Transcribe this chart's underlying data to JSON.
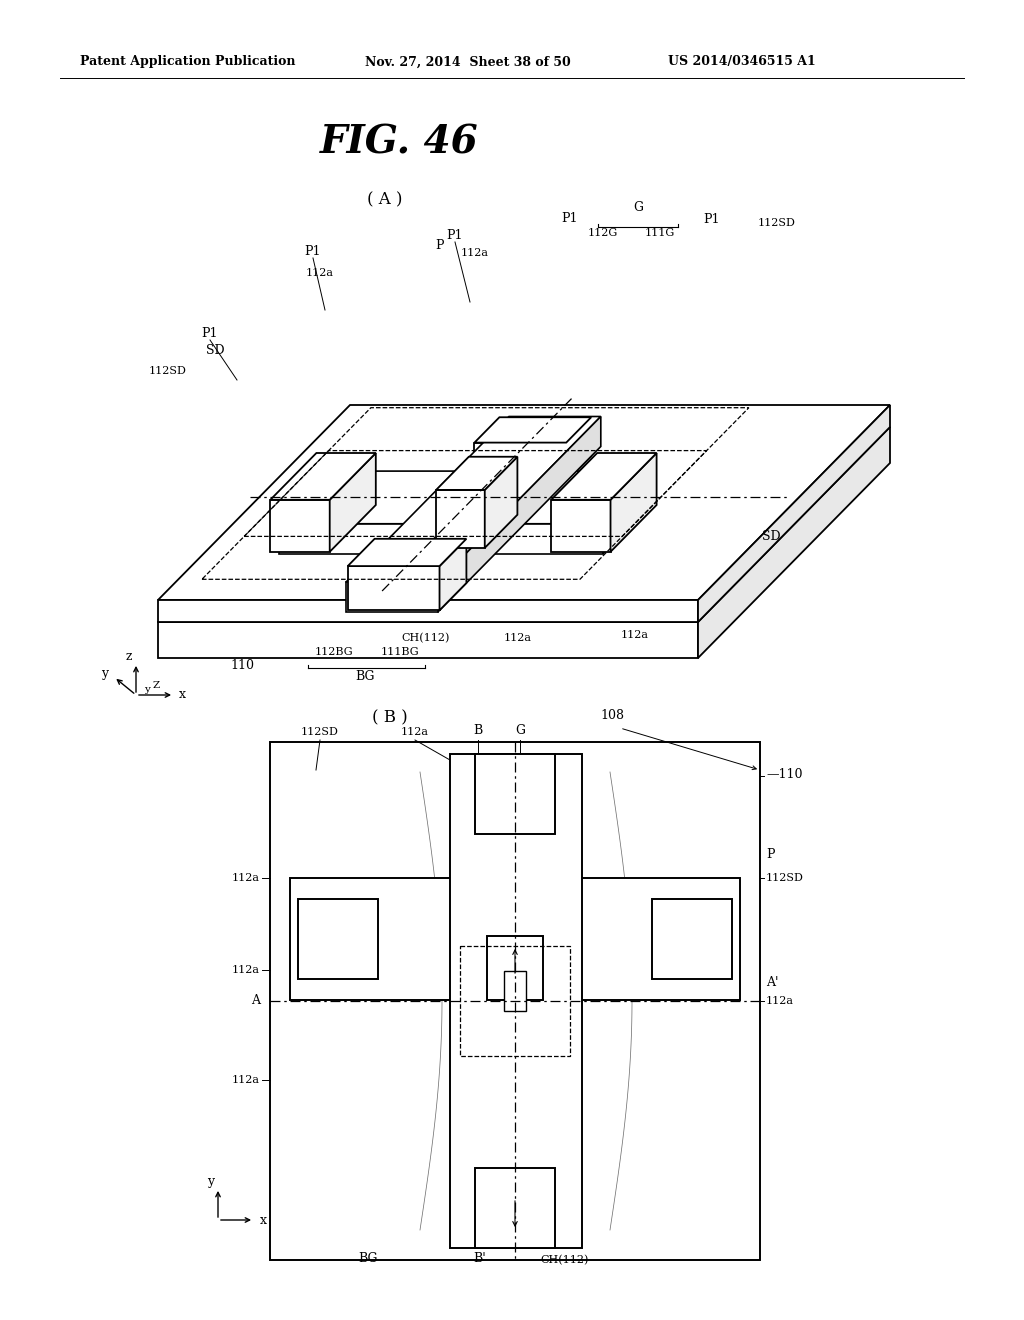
{
  "header_left": "Patent Application Publication",
  "header_mid": "Nov. 27, 2014  Sheet 38 of 50",
  "header_right": "US 2014/0346515 A1",
  "fig_title": "FIG. 46",
  "label_A": "( A )",
  "label_B": "( B )",
  "bg_color": "#ffffff",
  "line_color": "#000000"
}
